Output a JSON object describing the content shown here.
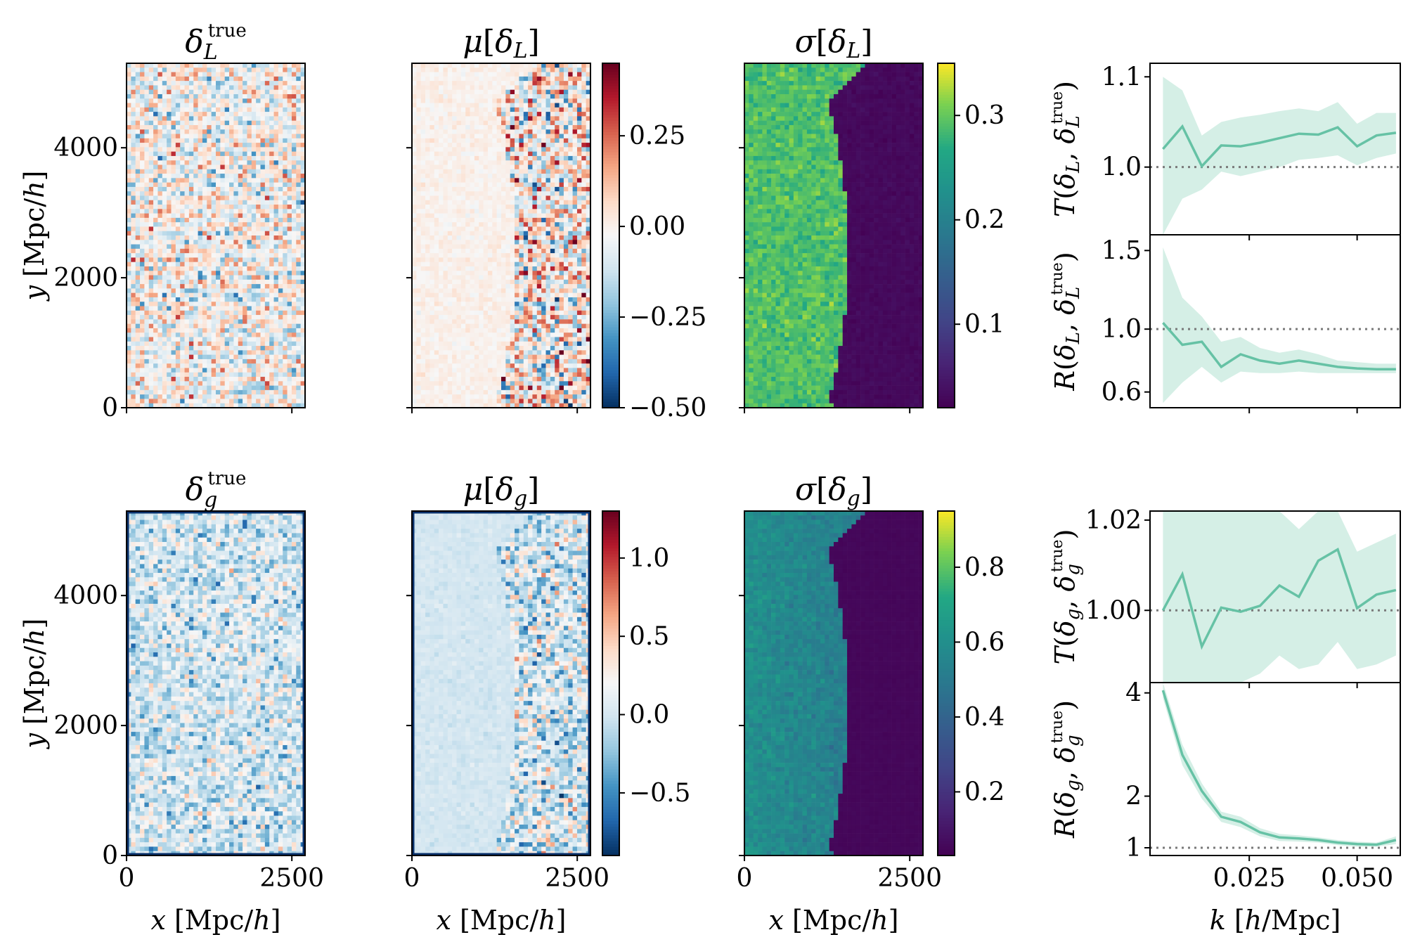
{
  "figure": {
    "row_top": {
      "panels": [
        {
          "id": "delta_L_true",
          "title": {
            "sym": "δ",
            "sub": "L",
            "sup": "true"
          },
          "kind": "field",
          "colormap": "RdBu_r",
          "vmin": -0.5,
          "vmax": 0.5,
          "amplitude": 0.18,
          "footprint": false
        },
        {
          "id": "mu_delta_L",
          "title": {
            "fn": "μ",
            "sym": "δ",
            "sub": "L"
          },
          "kind": "field",
          "colormap": "RdBu_r",
          "vmin": -0.5,
          "vmax": 0.45,
          "amplitude": 0.25,
          "footprint": true
        },
        {
          "id": "sigma_delta_L",
          "title": {
            "fn": "σ",
            "sym": "δ",
            "sub": "L"
          },
          "kind": "sigma",
          "colormap": "viridis",
          "vmin": 0.02,
          "vmax": 0.35,
          "outside": 0.29,
          "inside": 0.03
        }
      ],
      "colorbars": [
        {
          "for": "mu_delta_L",
          "ticks": [
            "0.25",
            "0.00",
            "−0.25",
            "−0.50"
          ],
          "tick_values": [
            0.25,
            0.0,
            -0.25,
            -0.5
          ]
        },
        {
          "for": "sigma_delta_L",
          "ticks": [
            "0.3",
            "0.2",
            "0.1"
          ],
          "tick_values": [
            0.3,
            0.2,
            0.1
          ]
        }
      ]
    },
    "row_bottom": {
      "panels": [
        {
          "id": "delta_g_true",
          "title": {
            "sym": "δ",
            "sub": "g",
            "sup": "true"
          },
          "kind": "field",
          "colormap": "RdBu_r",
          "vmin": -0.9,
          "vmax": 1.3,
          "amplitude": 0.3,
          "footprint": false
        },
        {
          "id": "mu_delta_g",
          "title": {
            "fn": "μ",
            "sym": "δ",
            "sub": "g"
          },
          "kind": "field",
          "colormap": "RdBu_r",
          "vmin": -0.9,
          "vmax": 1.3,
          "amplitude": 0.4,
          "footprint": true
        },
        {
          "id": "sigma_delta_g",
          "title": {
            "fn": "σ",
            "sym": "δ",
            "sub": "g"
          },
          "kind": "sigma",
          "colormap": "viridis",
          "vmin": 0.03,
          "vmax": 0.95,
          "outside": 0.6,
          "inside": 0.05
        }
      ],
      "colorbars": [
        {
          "for": "mu_delta_g",
          "ticks": [
            "1.0",
            "0.5",
            "0.0",
            "−0.5"
          ],
          "tick_values": [
            1.0,
            0.5,
            0.0,
            -0.5
          ]
        },
        {
          "for": "sigma_delta_g",
          "ticks": [
            "0.8",
            "0.6",
            "0.4",
            "0.2"
          ],
          "tick_values": [
            0.8,
            0.6,
            0.4,
            0.2
          ]
        }
      ]
    },
    "map_axes": {
      "ylabel": {
        "var": "y",
        "unit_open": " [Mpc/",
        "unit_var": "h",
        "unit_close": "]"
      },
      "xlabel": {
        "var": "x",
        "unit_open": " [Mpc/",
        "unit_var": "h",
        "unit_close": "]"
      },
      "yticks_top": [
        "0",
        "2000",
        "4000"
      ],
      "yticks_bottom": [
        "0",
        "2000",
        "4000"
      ],
      "ytick_values": [
        0,
        2000,
        4000
      ],
      "xticks": [
        "0",
        "2500"
      ],
      "xtick_values": [
        0,
        2500
      ],
      "xlim": [
        0,
        2700
      ],
      "ylim": [
        0,
        5300
      ]
    },
    "spectra_axes": {
      "xlabel": {
        "var": "k",
        "unit_open": " [",
        "unit_var": "h",
        "unit_close": "/Mpc]"
      },
      "xticks": [
        "0.025",
        "0.050"
      ],
      "xtick_values": [
        0.025,
        0.05
      ],
      "xlim": [
        0.002,
        0.06
      ]
    }
  },
  "chart_data": [
    {
      "type": "line",
      "panel": "T_delta_L",
      "ylabel": {
        "fn": "T",
        "a": "δ",
        "a_sub": "L",
        "b": "δ",
        "b_sub": "L",
        "b_sup": "true"
      },
      "yticks": [
        "1.0",
        "1.1"
      ],
      "ytick_values": [
        1.0,
        1.1
      ],
      "ylim": [
        0.925,
        1.115
      ],
      "reference_line": 1.0,
      "x": [
        0.005,
        0.0095,
        0.014,
        0.0185,
        0.023,
        0.0275,
        0.032,
        0.0365,
        0.041,
        0.0455,
        0.05,
        0.0545,
        0.059
      ],
      "y": [
        1.02,
        1.045,
        1.001,
        1.024,
        1.023,
        1.027,
        1.032,
        1.037,
        1.036,
        1.044,
        1.023,
        1.035,
        1.038
      ],
      "band_lower": [
        0.925,
        0.965,
        0.975,
        0.995,
        0.99,
        0.995,
        1.0,
        1.008,
        1.01,
        1.013,
        1.002,
        1.01,
        1.015
      ],
      "band_upper": [
        1.1,
        1.085,
        1.035,
        1.05,
        1.055,
        1.058,
        1.062,
        1.065,
        1.062,
        1.072,
        1.048,
        1.06,
        1.06
      ]
    },
    {
      "type": "line",
      "panel": "R_delta_L",
      "ylabel": {
        "fn": "R",
        "a": "δ",
        "a_sub": "L",
        "b": "δ",
        "b_sub": "L",
        "b_sup": "true"
      },
      "yticks": [
        "0.6",
        "1.0",
        "1.5"
      ],
      "ytick_values": [
        0.6,
        1.0,
        1.5
      ],
      "ylim": [
        0.5,
        1.6
      ],
      "reference_line": 1.0,
      "x": [
        0.005,
        0.0095,
        0.014,
        0.0185,
        0.023,
        0.0275,
        0.032,
        0.0365,
        0.041,
        0.0455,
        0.05,
        0.0545,
        0.059
      ],
      "y": [
        1.04,
        0.9,
        0.92,
        0.76,
        0.84,
        0.8,
        0.78,
        0.8,
        0.78,
        0.76,
        0.75,
        0.745,
        0.745
      ],
      "band_lower": [
        0.53,
        0.66,
        0.76,
        0.66,
        0.73,
        0.72,
        0.72,
        0.73,
        0.72,
        0.72,
        0.72,
        0.72,
        0.72
      ],
      "band_upper": [
        1.52,
        1.2,
        1.08,
        0.92,
        0.95,
        0.88,
        0.85,
        0.87,
        0.84,
        0.8,
        0.79,
        0.78,
        0.78
      ]
    },
    {
      "type": "line",
      "panel": "T_delta_g",
      "ylabel": {
        "fn": "T",
        "a": "δ",
        "a_sub": "g",
        "b": "δ",
        "b_sub": "g",
        "b_sup": "true"
      },
      "yticks": [
        "1.00",
        "1.02"
      ],
      "ytick_values": [
        1.0,
        1.02
      ],
      "ylim": [
        0.984,
        1.022
      ],
      "reference_line": 1.0,
      "x": [
        0.005,
        0.0095,
        0.014,
        0.0185,
        0.023,
        0.0275,
        0.032,
        0.0365,
        0.041,
        0.0455,
        0.05,
        0.0545,
        0.059
      ],
      "y": [
        1.0,
        1.008,
        0.992,
        1.0006,
        0.9997,
        1.001,
        1.0055,
        1.003,
        1.011,
        1.0135,
        1.0005,
        1.0035,
        1.0045
      ],
      "band_lower": [
        0.984,
        0.984,
        0.984,
        0.984,
        0.984,
        0.986,
        0.99,
        0.987,
        0.988,
        0.993,
        0.987,
        0.988,
        0.99
      ],
      "band_upper": [
        1.022,
        1.022,
        1.022,
        1.022,
        1.022,
        1.022,
        1.022,
        1.018,
        1.022,
        1.022,
        1.013,
        1.015,
        1.017
      ]
    },
    {
      "type": "line",
      "panel": "R_delta_g",
      "ylabel": {
        "fn": "R",
        "a": "δ",
        "a_sub": "g",
        "b": "δ",
        "b_sub": "g",
        "b_sup": "true"
      },
      "yticks": [
        "1",
        "2",
        "4"
      ],
      "ytick_values": [
        1,
        2,
        4
      ],
      "ylim": [
        0.85,
        4.2
      ],
      "reference_line": 1.0,
      "x": [
        0.005,
        0.0095,
        0.014,
        0.0185,
        0.023,
        0.0275,
        0.032,
        0.0365,
        0.041,
        0.0455,
        0.05,
        0.0545,
        0.059
      ],
      "y": [
        4.05,
        2.8,
        2.1,
        1.6,
        1.5,
        1.3,
        1.2,
        1.18,
        1.15,
        1.1,
        1.07,
        1.06,
        1.15
      ],
      "band_lower": [
        3.9,
        2.6,
        1.95,
        1.5,
        1.4,
        1.22,
        1.13,
        1.12,
        1.1,
        1.05,
        1.02,
        1.02,
        1.07
      ],
      "band_upper": [
        4.2,
        3.0,
        2.25,
        1.7,
        1.6,
        1.38,
        1.27,
        1.24,
        1.2,
        1.15,
        1.12,
        1.1,
        1.22
      ]
    }
  ],
  "colors": {
    "line": "#66c2a5",
    "band": "#d5efe6",
    "ref": "#7a7a7a",
    "frame": "#000000",
    "map_border": "#08306b"
  }
}
